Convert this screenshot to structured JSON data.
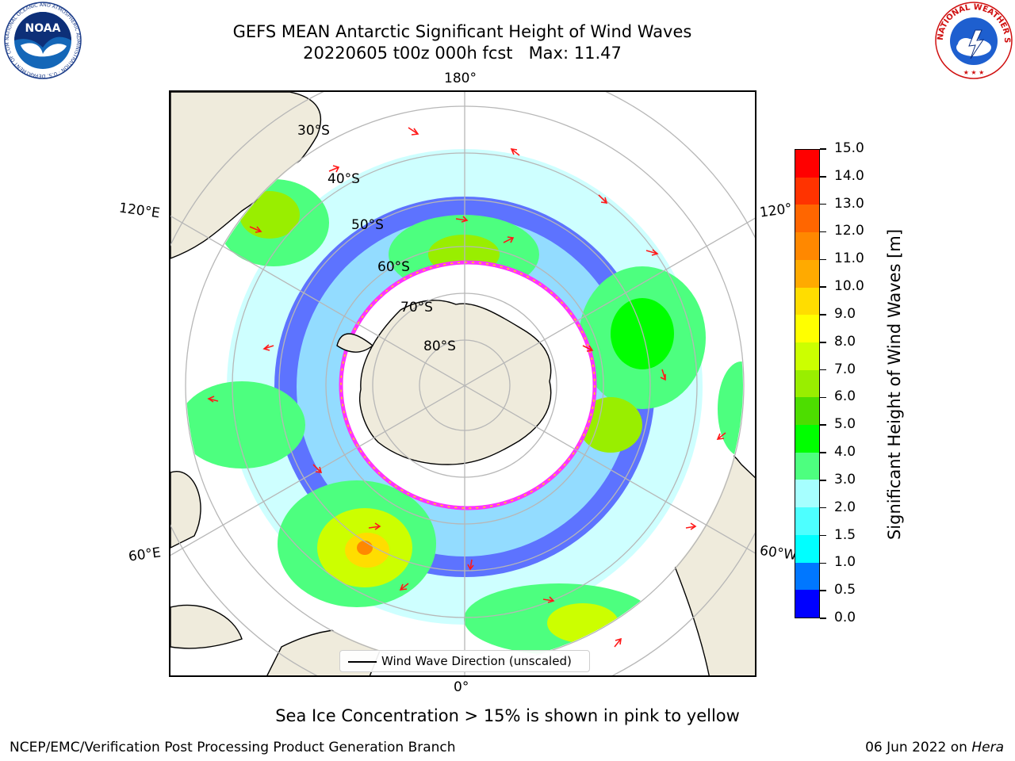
{
  "header": {
    "title_line1": "GEFS MEAN Antarctic Significant Height of Wind Waves",
    "title_line2": "20220605 t00z 000h fcst   Max: 11.47"
  },
  "logos": {
    "left_name": "NOAA",
    "left_ring_text": "NATIONAL OCEANIC AND ATMOSPHERIC ADMINISTRATION · U.S. DEPARTMENT OF COMMERCE",
    "right_ring_text": "NATIONAL WEATHER SERVICE"
  },
  "map": {
    "lon_labels": {
      "top": "180°",
      "bottom": "0°",
      "upper_left": "120°E",
      "upper_right": "120°",
      "lower_left": "60°E",
      "lower_right": "60°W"
    },
    "lat_labels": [
      "30°S",
      "40°S",
      "50°S",
      "60°S",
      "70°S",
      "80°S"
    ],
    "legend_label": "Wind Wave Direction (unscaled)",
    "colors": {
      "land": "#efebdc",
      "coast": "#000000",
      "grid": "#b7b7b7",
      "arrow": "#ff1a1a",
      "sea_ice": "#ff33ff"
    }
  },
  "colorbar": {
    "title": "Significant Height of Wind Waves [m]",
    "tick_labels": [
      "0.0",
      "0.5",
      "1.0",
      "1.5",
      "2.0",
      "3.0",
      "4.0",
      "5.0",
      "6.0",
      "7.0",
      "8.0",
      "9.0",
      "10.0",
      "11.0",
      "12.0",
      "13.0",
      "14.0",
      "15.0"
    ],
    "colors": [
      "#0000ff",
      "#0077ff",
      "#00ffff",
      "#4dffff",
      "#a6ffff",
      "#4dff7f",
      "#00ff00",
      "#4ddd00",
      "#99ee00",
      "#ccff00",
      "#ffff00",
      "#ffdd00",
      "#ffaa00",
      "#ff8800",
      "#ff6600",
      "#ff3300",
      "#ff0000"
    ]
  },
  "caption": "Sea Ice Concentration > 15% is shown in pink to yellow",
  "footer": {
    "left": "NCEP/EMC/Verification Post Processing Product Generation Branch",
    "right_prefix": "06 Jun 2022 on ",
    "right_host": "Hera"
  }
}
